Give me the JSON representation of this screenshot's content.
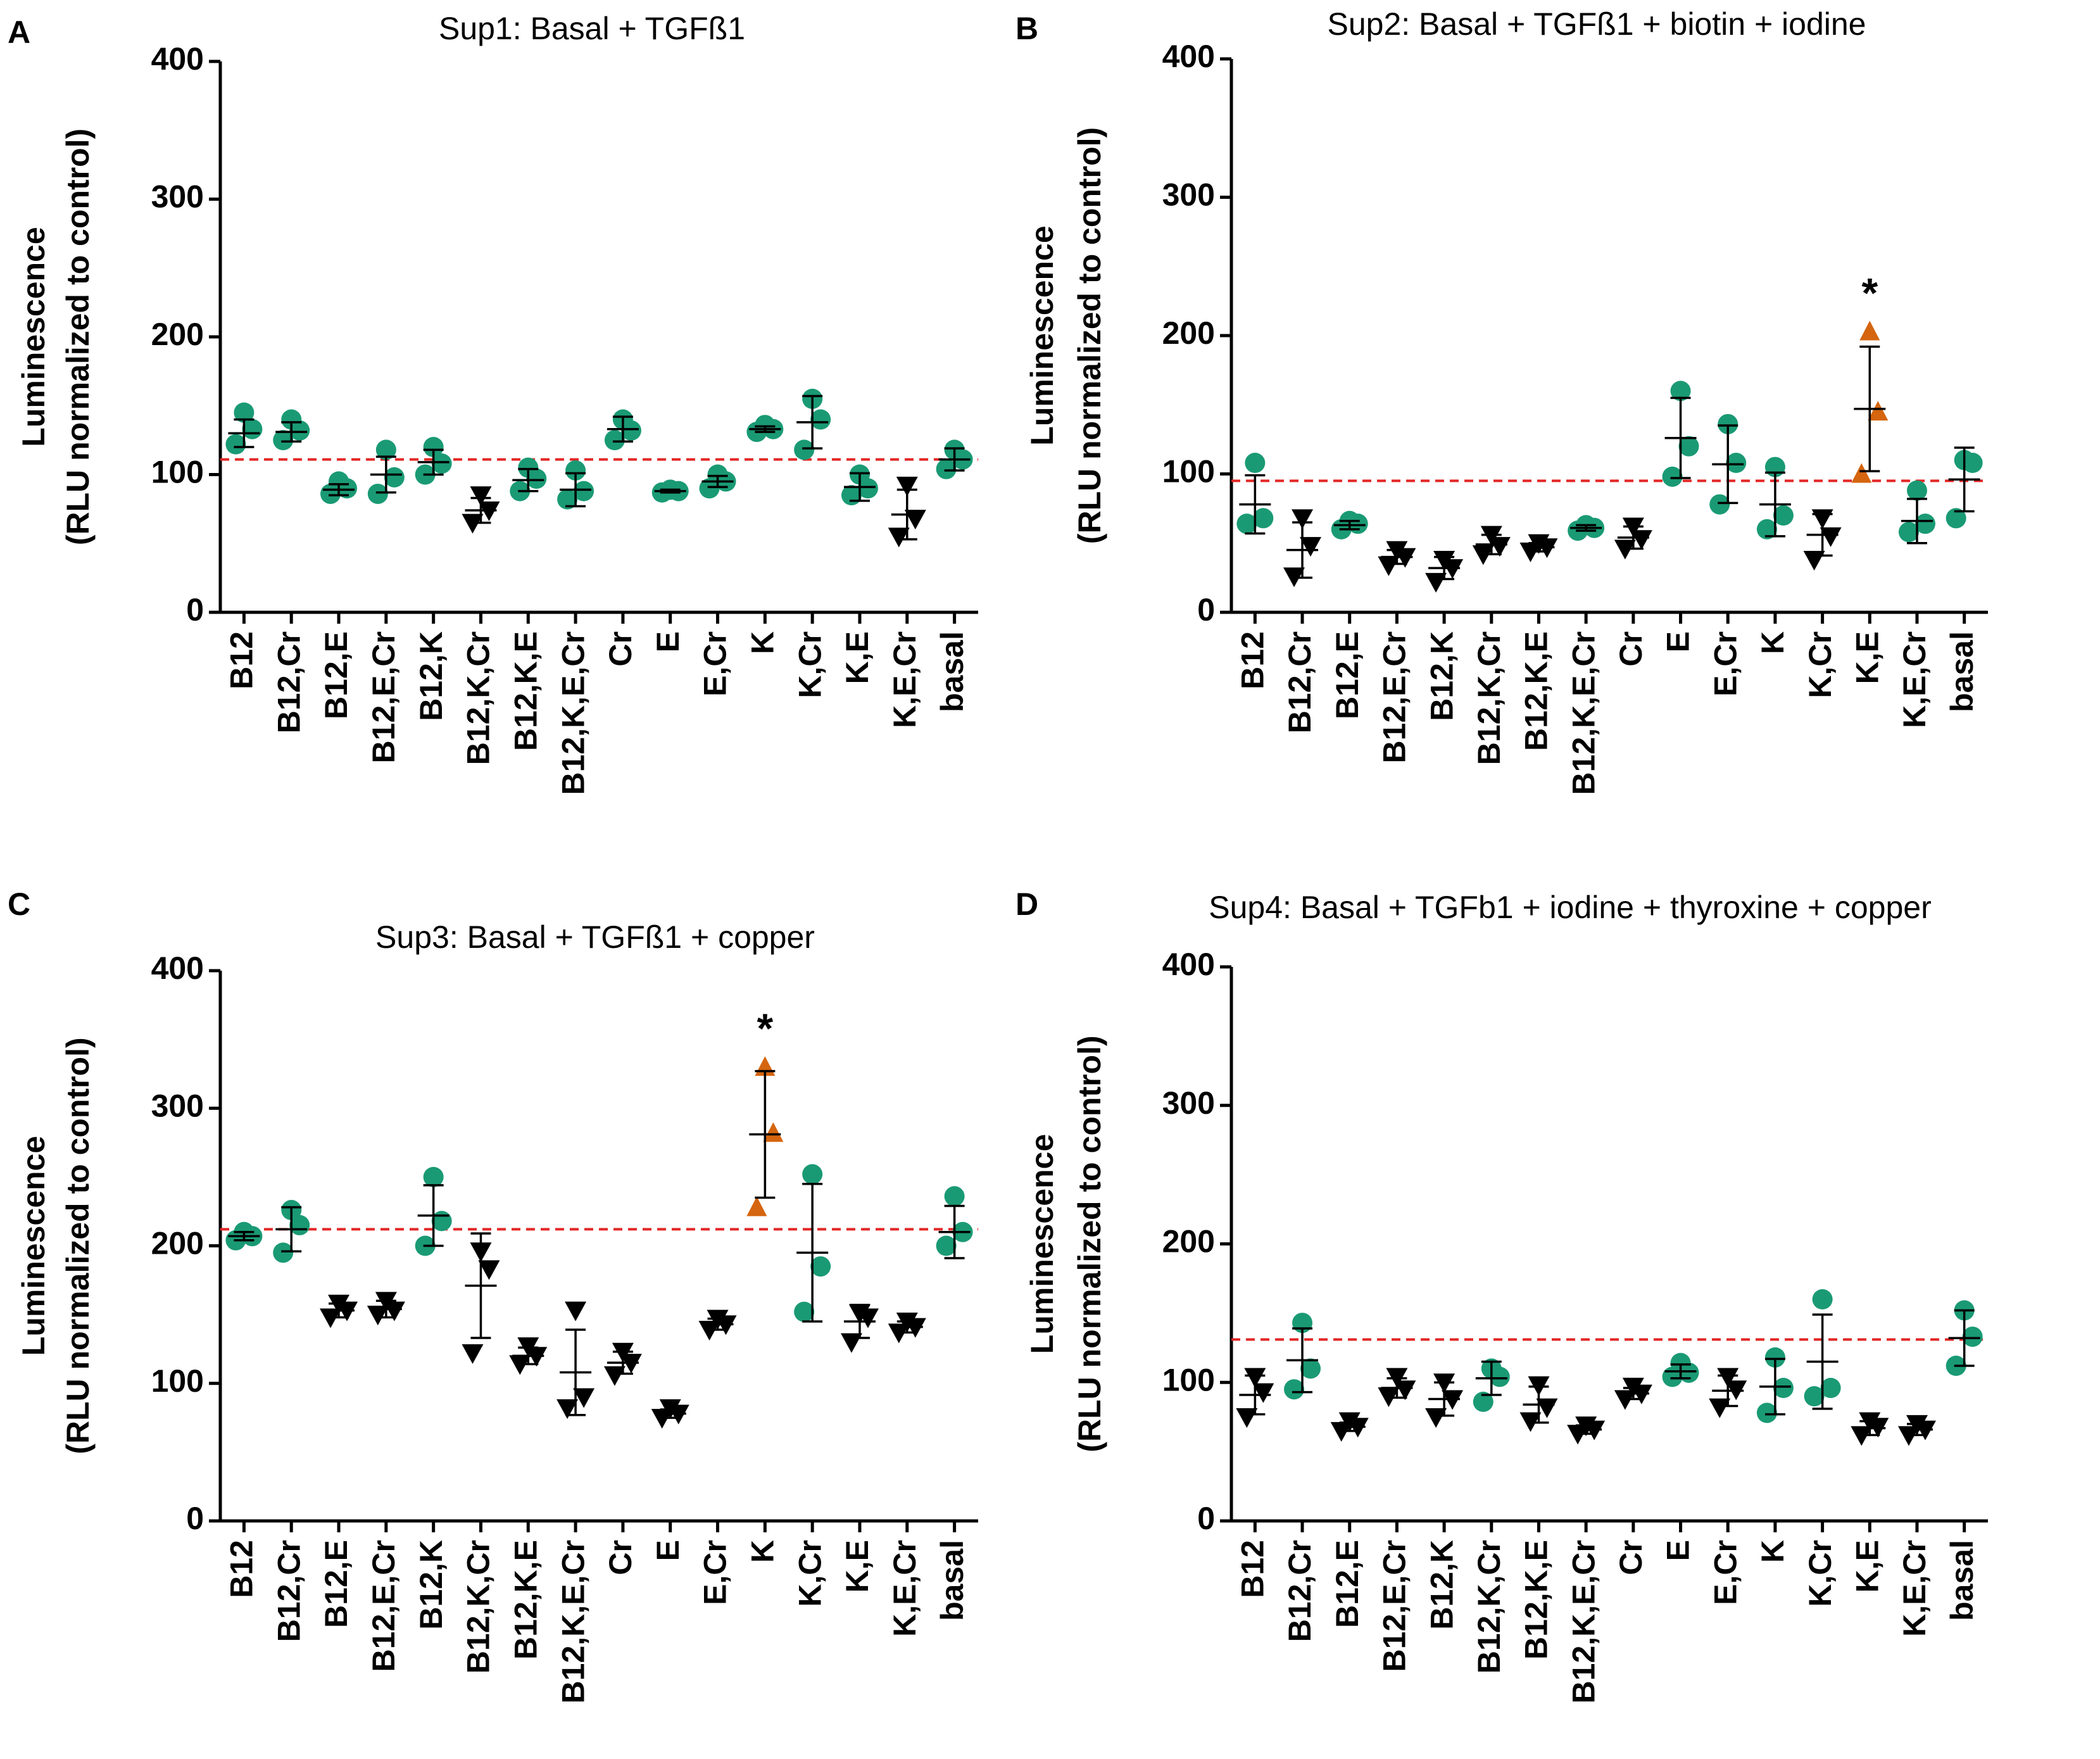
{
  "figure": {
    "colors": {
      "green": "#1a9a74",
      "black": "#000000",
      "orange": "#d5650f",
      "reference_line": "#e32626"
    },
    "shared_ylabel_line1": "Luminescence",
    "shared_ylabel_line2": "(RLU normalized to control)"
  },
  "chart_data": [
    {
      "type": "scatter",
      "panel": "A",
      "title": "Sup1: Basal + TGFß1",
      "xlabel": "",
      "ylabel": "Luminescence (RLU normalized to control)",
      "ylim": [
        0,
        400
      ],
      "yticks": [
        0,
        100,
        200,
        300,
        400
      ],
      "reference_line": 111,
      "categories": [
        "B12",
        "B12,Cr",
        "B12,E",
        "B12,E,Cr",
        "B12,K",
        "B12,K,Cr",
        "B12,K,E",
        "B12,K,E,Cr",
        "Cr",
        "E",
        "E,Cr",
        "K",
        "K,Cr",
        "K,E",
        "K,E,Cr",
        "basal"
      ],
      "points": [
        [
          122,
          133,
          145
        ],
        [
          125,
          132,
          140
        ],
        [
          86,
          90,
          95
        ],
        [
          86,
          98,
          118
        ],
        [
          100,
          108,
          120
        ],
        [
          65,
          74,
          85
        ],
        [
          88,
          97,
          105
        ],
        [
          82,
          88,
          103
        ],
        [
          125,
          132,
          140
        ],
        [
          87,
          88,
          89
        ],
        [
          90,
          95,
          100
        ],
        [
          131,
          133,
          136
        ],
        [
          118,
          140,
          155
        ],
        [
          85,
          90,
          100
        ],
        [
          55,
          68,
          92
        ],
        [
          104,
          111,
          118
        ]
      ],
      "means": [
        130,
        131,
        89,
        100,
        109,
        74,
        96,
        89,
        133,
        88,
        95,
        133,
        138,
        91,
        71,
        111
      ],
      "sd": [
        10,
        7,
        4,
        13,
        9,
        9,
        8,
        12,
        9,
        1,
        4,
        2,
        19,
        10,
        18,
        8
      ],
      "marker": [
        "circle",
        "circle",
        "circle",
        "circle",
        "circle",
        "triangle-down",
        "circle",
        "circle",
        "circle",
        "circle",
        "circle",
        "circle",
        "circle",
        "circle",
        "triangle-down",
        "circle"
      ],
      "color": [
        "green",
        "green",
        "green",
        "green",
        "green",
        "black",
        "green",
        "green",
        "green",
        "green",
        "green",
        "green",
        "green",
        "green",
        "black",
        "green"
      ],
      "significance": []
    },
    {
      "type": "scatter",
      "panel": "B",
      "title": "Sup2: Basal + TGFß1 + biotin + iodine",
      "xlabel": "",
      "ylabel": "Luminescence (RLU normalized to control)",
      "ylim": [
        0,
        400
      ],
      "yticks": [
        0,
        100,
        200,
        300,
        400
      ],
      "reference_line": 95,
      "categories": [
        "B12",
        "B12,Cr",
        "B12,E",
        "B12,E,Cr",
        "B12,K",
        "B12,K,Cr",
        "B12,K,E",
        "B12,K,E,Cr",
        "Cr",
        "E",
        "E,Cr",
        "K",
        "K,Cr",
        "K,E",
        "K,E,Cr",
        "basal"
      ],
      "points": [
        [
          64,
          68,
          108
        ],
        [
          26,
          48,
          68
        ],
        [
          60,
          64,
          66
        ],
        [
          34,
          40,
          45
        ],
        [
          22,
          32,
          38
        ],
        [
          42,
          48,
          56
        ],
        [
          44,
          47,
          50
        ],
        [
          59,
          61,
          63
        ],
        [
          46,
          53,
          62
        ],
        [
          98,
          120,
          160
        ],
        [
          78,
          108,
          136
        ],
        [
          60,
          70,
          105
        ],
        [
          38,
          55,
          68
        ],
        [
          100,
          145,
          203
        ],
        [
          58,
          64,
          88
        ],
        [
          68,
          108,
          110
        ]
      ],
      "means": [
        78,
        45,
        63,
        40,
        32,
        49,
        47,
        61,
        54,
        126,
        107,
        78,
        56,
        147,
        66,
        96
      ],
      "sd": [
        21,
        20,
        3,
        5,
        8,
        7,
        3,
        2,
        8,
        29,
        28,
        23,
        15,
        45,
        16,
        23
      ],
      "marker": [
        "circle",
        "triangle-down",
        "circle",
        "triangle-down",
        "triangle-down",
        "triangle-down",
        "triangle-down",
        "circle",
        "triangle-down",
        "circle",
        "circle",
        "circle",
        "triangle-down",
        "triangle-up",
        "circle",
        "circle"
      ],
      "color": [
        "green",
        "black",
        "green",
        "black",
        "black",
        "black",
        "black",
        "green",
        "black",
        "green",
        "green",
        "green",
        "black",
        "orange",
        "green",
        "green"
      ],
      "significance": [
        "K,E"
      ]
    },
    {
      "type": "scatter",
      "panel": "C",
      "title": "Sup3: Basal + TGFß1 + copper",
      "xlabel": "",
      "ylabel": "Luminescence (RLU normalized to control)",
      "ylim": [
        0,
        400
      ],
      "yticks": [
        0,
        100,
        200,
        300,
        400
      ],
      "reference_line": 212,
      "categories": [
        "B12",
        "B12,Cr",
        "B12,E",
        "B12,E,Cr",
        "B12,K",
        "B12,K,Cr",
        "B12,K,E",
        "B12,K,E,Cr",
        "Cr",
        "E",
        "E,Cr",
        "K",
        "K,Cr",
        "K,E",
        "K,E,Cr",
        "basal"
      ],
      "points": [
        [
          204,
          207,
          210
        ],
        [
          195,
          215,
          226
        ],
        [
          148,
          153,
          158
        ],
        [
          150,
          153,
          160
        ],
        [
          200,
          218,
          250
        ],
        [
          122,
          183,
          196
        ],
        [
          114,
          120,
          127
        ],
        [
          82,
          90,
          153
        ],
        [
          106,
          115,
          123
        ],
        [
          75,
          78,
          82
        ],
        [
          139,
          143,
          147
        ],
        [
          228,
          282,
          330
        ],
        [
          152,
          185,
          252
        ],
        [
          130,
          148,
          151
        ],
        [
          137,
          141,
          145
        ],
        [
          200,
          210,
          236
        ]
      ],
      "means": [
        207,
        212,
        153,
        154,
        222,
        171,
        120,
        108,
        115,
        78,
        143,
        281,
        195,
        145,
        141,
        210
      ],
      "sd": [
        3,
        16,
        5,
        6,
        22,
        38,
        6,
        31,
        8,
        3,
        4,
        46,
        50,
        12,
        4,
        19
      ],
      "marker": [
        "circle",
        "circle",
        "triangle-down",
        "triangle-down",
        "circle",
        "triangle-down",
        "triangle-down",
        "triangle-down",
        "triangle-down",
        "triangle-down",
        "triangle-down",
        "triangle-up",
        "circle",
        "triangle-down",
        "triangle-down",
        "circle"
      ],
      "color": [
        "green",
        "green",
        "black",
        "black",
        "green",
        "black",
        "black",
        "black",
        "black",
        "black",
        "black",
        "orange",
        "green",
        "black",
        "black",
        "green"
      ],
      "significance": [
        "K"
      ]
    },
    {
      "type": "scatter",
      "panel": "D",
      "title": "Sup4: Basal + TGFb1 + iodine + thyroxine + copper",
      "xlabel": "",
      "ylabel": "Luminescence (RLU normalized to control)",
      "ylim": [
        0,
        400
      ],
      "yticks": [
        0,
        100,
        200,
        300,
        400
      ],
      "reference_line": 131,
      "categories": [
        "B12",
        "B12,Cr",
        "B12,E",
        "B12,E,Cr",
        "B12,K",
        "B12,K,Cr",
        "B12,K,E",
        "B12,K,E,Cr",
        "Cr",
        "E",
        "E,Cr",
        "K",
        "K,Cr",
        "K,E",
        "K,E,Cr",
        "basal"
      ],
      "points": [
        [
          75,
          93,
          104
        ],
        [
          95,
          110,
          143
        ],
        [
          65,
          68,
          72
        ],
        [
          90,
          95,
          104
        ],
        [
          75,
          88,
          100
        ],
        [
          86,
          104,
          110
        ],
        [
          72,
          82,
          98
        ],
        [
          63,
          66,
          69
        ],
        [
          88,
          92,
          97
        ],
        [
          104,
          107,
          114
        ],
        [
          82,
          95,
          104
        ],
        [
          78,
          96,
          118
        ],
        [
          90,
          96,
          160
        ],
        [
          62,
          68,
          72
        ],
        [
          62,
          66,
          70
        ],
        [
          112,
          133,
          152
        ]
      ],
      "means": [
        91,
        116,
        68,
        96,
        88,
        103,
        84,
        66,
        92,
        108,
        94,
        97,
        115,
        67,
        66,
        132
      ],
      "sd": [
        14,
        23,
        3,
        7,
        12,
        12,
        13,
        3,
        4,
        5,
        11,
        20,
        34,
        5,
        4,
        20
      ],
      "marker": [
        "triangle-down",
        "circle",
        "triangle-down",
        "triangle-down",
        "triangle-down",
        "circle",
        "triangle-down",
        "triangle-down",
        "triangle-down",
        "circle",
        "triangle-down",
        "circle",
        "circle",
        "triangle-down",
        "triangle-down",
        "circle"
      ],
      "color": [
        "black",
        "green",
        "black",
        "black",
        "black",
        "green",
        "black",
        "black",
        "black",
        "green",
        "black",
        "green",
        "green",
        "black",
        "black",
        "green"
      ],
      "significance": []
    }
  ]
}
